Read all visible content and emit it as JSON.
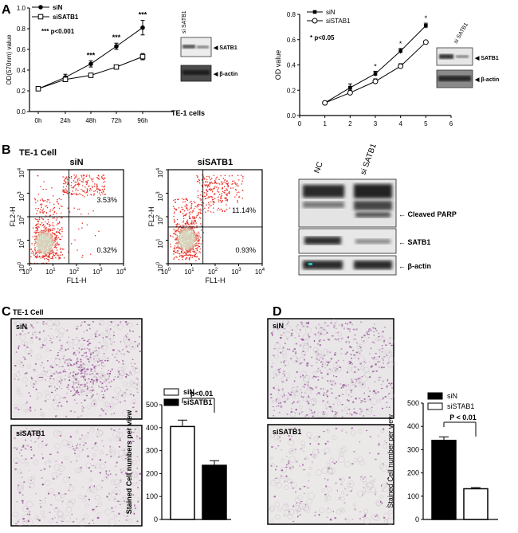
{
  "panel_labels": {
    "A": "A",
    "B": "B",
    "C": "C",
    "D": "D"
  },
  "colors": {
    "scatter": "#e8281e",
    "dense": "#d7ecd3",
    "stain": "#8a3c8c",
    "bg_stain": "#eae6e6"
  },
  "panel_a": {
    "cells": "TE-1 cells",
    "sig": "*** p<0.001",
    "blot": {
      "lane": "si SATB1",
      "bands": [
        "SATB1",
        "β-actin"
      ]
    }
  },
  "panel_a2": {
    "sig": "* p<0.05",
    "blot": {
      "lane": "si SATB1",
      "bands": [
        "SATB1",
        "β-actin"
      ]
    }
  },
  "panel_b": {
    "title": "TE-1 Cell",
    "flow": [
      {
        "title": "siN",
        "ur": "3.53%",
        "lr": "0.32%"
      },
      {
        "title": "siSATB1",
        "ur": "11.14%",
        "lr": "0.93%"
      }
    ],
    "xlabel": "FL1-H",
    "ylabel": "FL2-H",
    "ticks": [
      "10",
      "10",
      "10",
      "10",
      "10"
    ],
    "exps": [
      "0",
      "1",
      "2",
      "3",
      "4"
    ],
    "western": {
      "lanes": [
        "NC",
        "si SATB1"
      ],
      "bands": [
        "Cleaved PARP",
        "SATB1",
        "β-actin"
      ]
    }
  },
  "panel_c": {
    "title": "TE-1 Cell",
    "image_labels": [
      "siN",
      "siSATB1"
    ]
  },
  "panel_d": {
    "image_labels": [
      "siN",
      "siSATB1"
    ]
  },
  "chart_data": [
    {
      "type": "line",
      "panel": "A-left",
      "x": [
        "0h",
        "24h",
        "48h",
        "72h",
        "96h"
      ],
      "ylabel": "OD(570nm) value",
      "ylim": [
        0.0,
        1.0
      ],
      "yticks": [
        "0.0",
        "0.2",
        "0.4",
        "0.6",
        "0.8",
        "1.0"
      ],
      "series": [
        {
          "name": "siN",
          "values": [
            0.22,
            0.33,
            0.46,
            0.63,
            0.81
          ],
          "err": [
            0.02,
            0.03,
            0.03,
            0.03,
            0.07
          ]
        },
        {
          "name": "siSATB1",
          "values": [
            0.22,
            0.31,
            0.35,
            0.43,
            0.53
          ],
          "err": [
            0.02,
            0.02,
            0.02,
            0.02,
            0.03
          ]
        }
      ],
      "annotations": [
        "***",
        "***",
        "***"
      ]
    },
    {
      "type": "line",
      "panel": "A-right",
      "x": [
        1,
        2,
        3,
        4,
        5
      ],
      "xticks": [
        "0",
        "1",
        "2",
        "3",
        "4",
        "5",
        "6"
      ],
      "ylabel": "OD value",
      "ylim": [
        0.0,
        0.8
      ],
      "yticks": [
        "0.0",
        "0.2",
        "0.4",
        "0.6",
        "0.8"
      ],
      "series": [
        {
          "name": "siN",
          "values": [
            0.1,
            0.22,
            0.33,
            0.51,
            0.71
          ],
          "err": [
            0.01,
            0.03,
            0.02,
            0.02,
            0.02
          ]
        },
        {
          "name": "siSTAB1",
          "values": [
            0.1,
            0.18,
            0.27,
            0.39,
            0.58
          ],
          "err": [
            0.01,
            0.02,
            0.02,
            0.02,
            0.01
          ]
        }
      ],
      "annotations": [
        "*",
        "*",
        "*"
      ]
    },
    {
      "type": "bar",
      "panel": "C",
      "categories": [
        "siN",
        "siSATB1"
      ],
      "values": [
        405,
        236
      ],
      "err": [
        28,
        20
      ],
      "ylabel": "Stained Cell numbers per view",
      "ylim": [
        0,
        500
      ],
      "yticks": [
        "0",
        "100",
        "200",
        "300",
        "400",
        "500"
      ],
      "sig": "p<0.01"
    },
    {
      "type": "bar",
      "panel": "D",
      "categories": [
        "siN",
        "siSTAB1"
      ],
      "values": [
        340,
        132
      ],
      "err": [
        15,
        5
      ],
      "ylabel": "Stained Cell number per view",
      "ylim": [
        0,
        500
      ],
      "yticks": [
        "0",
        "100",
        "200",
        "300",
        "400",
        "500"
      ],
      "sig": "P < 0.01"
    }
  ]
}
